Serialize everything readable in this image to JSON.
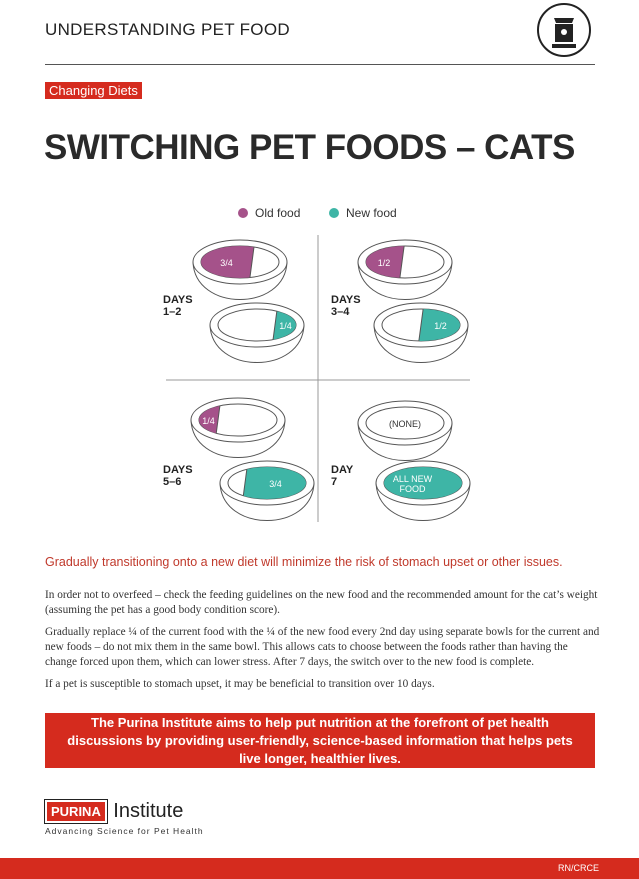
{
  "header": {
    "title": "UNDERSTANDING PET FOOD"
  },
  "tag": "Changing Diets",
  "title": "SWITCHING PET FOODS – CATS",
  "legend": [
    {
      "label": "Old food",
      "color": "#a5528a"
    },
    {
      "label": "New food",
      "color": "#3eb5a6"
    }
  ],
  "panels": [
    {
      "day_label": "DAYS",
      "day_range": "1–2",
      "old_bowl": [
        "3/4"
      ],
      "new_bowl": [
        "1/4"
      ]
    },
    {
      "day_label": "DAYS",
      "day_range": "3–4",
      "old_bowl": [
        "1/2"
      ],
      "new_bowl": [
        "1/2"
      ]
    },
    {
      "day_label": "DAYS",
      "day_range": "5–6",
      "old_bowl": [
        "1/4"
      ],
      "new_bowl": [
        "3/4"
      ]
    },
    {
      "day_label": "DAY",
      "day_range": "7",
      "old_bowl": [
        "(NONE)"
      ],
      "new_bowl": [
        "ALL NEW",
        "FOOD"
      ]
    }
  ],
  "lead": "Gradually transitioning onto a new diet will minimize the risk of stomach upset or other issues.",
  "paragraphs": [
    "In order not to overfeed – check the feeding guidelines on the new food and the recommended amount for the cat’s weight (assuming the pet has a good body condition score).",
    "Gradually replace ¼ of the current food with the ¼ of the new food every 2nd day using separate bowls for the current and new foods – do not mix them in the same bowl. This allows cats to choose between the foods rather than having the change forced upon them, which can lower stress. After 7 days, the switch over to the new food is complete.",
    "If a pet is susceptible to stomach upset, it may be beneficial to transition over 10 days."
  ],
  "banner": "The Purina Institute aims to help put nutrition at the forefront of pet health discussions by providing user-friendly, science-based information that helps pets live longer, healthier lives.",
  "logo": {
    "brand": "PURINA",
    "name": "Institute",
    "tagline": "Advancing Science for Pet Health"
  },
  "footer": "RN/CRCE"
}
